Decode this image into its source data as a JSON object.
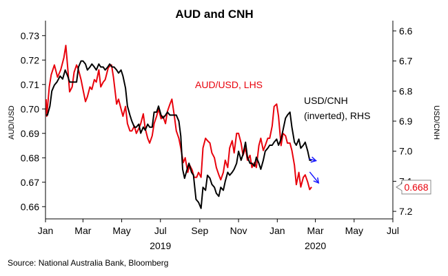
{
  "chart_data": {
    "type": "line",
    "title": "AUD and CNH",
    "left_axis": {
      "label": "AUD/USD",
      "range": [
        0.655,
        0.735
      ],
      "ticks": [
        "0.66",
        "0.67",
        "0.68",
        "0.69",
        "0.70",
        "0.71",
        "0.72",
        "0.73"
      ],
      "tick_values": [
        0.66,
        0.67,
        0.68,
        0.69,
        0.7,
        0.71,
        0.72,
        0.73
      ]
    },
    "right_axis": {
      "label": "USD/CNH",
      "inverted": true,
      "range": [
        6.575,
        7.225
      ],
      "ticks": [
        "6.6",
        "6.7",
        "6.8",
        "6.9",
        "7.0",
        "7.1",
        "7.2"
      ],
      "tick_values": [
        6.6,
        6.7,
        6.8,
        6.9,
        7.0,
        7.1,
        7.2
      ]
    },
    "x_axis": {
      "start": "2019-01-01",
      "end": "2020-07-01",
      "tick_labels": [
        "Jan",
        "Mar",
        "May",
        "Jul",
        "Sep",
        "Nov",
        "Jan",
        "Mar",
        "May",
        "Jul"
      ],
      "tick_dates": [
        "2019-01-01",
        "2019-03-01",
        "2019-05-01",
        "2019-07-01",
        "2019-09-01",
        "2019-11-01",
        "2020-01-01",
        "2020-03-01",
        "2020-05-01",
        "2020-07-01"
      ],
      "year_labels": [
        "2019",
        "2020"
      ]
    },
    "grid": false,
    "series": [
      {
        "name": "AUD/USD, LHS",
        "axis": "left",
        "color": "#e8000b",
        "points": [
          [
            "2019-01-02",
            0.704
          ],
          [
            "2019-01-03",
            0.697
          ],
          [
            "2019-01-07",
            0.709
          ],
          [
            "2019-01-10",
            0.714
          ],
          [
            "2019-01-15",
            0.718
          ],
          [
            "2019-01-20",
            0.713
          ],
          [
            "2019-01-25",
            0.716
          ],
          [
            "2019-01-30",
            0.721
          ],
          [
            "2019-02-02",
            0.726
          ],
          [
            "2019-02-05",
            0.717
          ],
          [
            "2019-02-08",
            0.707
          ],
          [
            "2019-02-12",
            0.709
          ],
          [
            "2019-02-15",
            0.715
          ],
          [
            "2019-02-19",
            0.718
          ],
          [
            "2019-02-22",
            0.716
          ],
          [
            "2019-02-26",
            0.712
          ],
          [
            "2019-03-01",
            0.708
          ],
          [
            "2019-03-05",
            0.703
          ],
          [
            "2019-03-08",
            0.705
          ],
          [
            "2019-03-12",
            0.709
          ],
          [
            "2019-03-15",
            0.708
          ],
          [
            "2019-03-19",
            0.712
          ],
          [
            "2019-03-22",
            0.711
          ],
          [
            "2019-03-26",
            0.716
          ],
          [
            "2019-03-29",
            0.709
          ],
          [
            "2019-04-02",
            0.711
          ],
          [
            "2019-04-05",
            0.712
          ],
          [
            "2019-04-10",
            0.717
          ],
          [
            "2019-04-15",
            0.718
          ],
          [
            "2019-04-18",
            0.713
          ],
          [
            "2019-04-23",
            0.702
          ],
          [
            "2019-04-26",
            0.704
          ],
          [
            "2019-04-30",
            0.7
          ],
          [
            "2019-05-03",
            0.697
          ],
          [
            "2019-05-07",
            0.701
          ],
          [
            "2019-05-10",
            0.694
          ],
          [
            "2019-05-14",
            0.691
          ],
          [
            "2019-05-17",
            0.691
          ],
          [
            "2019-05-21",
            0.693
          ],
          [
            "2019-05-24",
            0.69
          ],
          [
            "2019-05-28",
            0.692
          ],
          [
            "2019-05-31",
            0.694
          ],
          [
            "2019-06-04",
            0.698
          ],
          [
            "2019-06-07",
            0.692
          ],
          [
            "2019-06-11",
            0.688
          ],
          [
            "2019-06-14",
            0.686
          ],
          [
            "2019-06-18",
            0.689
          ],
          [
            "2019-06-21",
            0.694
          ],
          [
            "2019-06-25",
            0.697
          ],
          [
            "2019-06-28",
            0.7
          ],
          [
            "2019-07-02",
            0.696
          ],
          [
            "2019-07-05",
            0.697
          ],
          [
            "2019-07-09",
            0.694
          ],
          [
            "2019-07-12",
            0.699
          ],
          [
            "2019-07-16",
            0.702
          ],
          [
            "2019-07-19",
            0.704
          ],
          [
            "2019-07-23",
            0.697
          ],
          [
            "2019-07-26",
            0.691
          ],
          [
            "2019-07-30",
            0.688
          ],
          [
            "2019-08-02",
            0.684
          ],
          [
            "2019-08-06",
            0.678
          ],
          [
            "2019-08-09",
            0.68
          ],
          [
            "2019-08-13",
            0.674
          ],
          [
            "2019-08-16",
            0.677
          ],
          [
            "2019-08-20",
            0.675
          ],
          [
            "2019-08-23",
            0.672
          ],
          [
            "2019-08-27",
            0.672
          ],
          [
            "2019-08-30",
            0.674
          ],
          [
            "2019-09-03",
            0.672
          ],
          [
            "2019-09-06",
            0.684
          ],
          [
            "2019-09-10",
            0.688
          ],
          [
            "2019-09-13",
            0.687
          ],
          [
            "2019-09-17",
            0.686
          ],
          [
            "2019-09-20",
            0.682
          ],
          [
            "2019-09-24",
            0.68
          ],
          [
            "2019-09-27",
            0.676
          ],
          [
            "2019-10-01",
            0.673
          ],
          [
            "2019-10-04",
            0.671
          ],
          [
            "2019-10-08",
            0.674
          ],
          [
            "2019-10-11",
            0.679
          ],
          [
            "2019-10-15",
            0.676
          ],
          [
            "2019-10-18",
            0.684
          ],
          [
            "2019-10-22",
            0.687
          ],
          [
            "2019-10-25",
            0.682
          ],
          [
            "2019-10-29",
            0.69
          ],
          [
            "2019-11-01",
            0.69
          ],
          [
            "2019-11-05",
            0.686
          ],
          [
            "2019-11-08",
            0.681
          ],
          [
            "2019-11-12",
            0.684
          ],
          [
            "2019-11-15",
            0.679
          ],
          [
            "2019-11-19",
            0.681
          ],
          [
            "2019-11-22",
            0.676
          ],
          [
            "2019-11-26",
            0.678
          ],
          [
            "2019-11-29",
            0.676
          ],
          [
            "2019-12-03",
            0.685
          ],
          [
            "2019-12-06",
            0.688
          ],
          [
            "2019-12-10",
            0.683
          ],
          [
            "2019-12-13",
            0.685
          ],
          [
            "2019-12-17",
            0.688
          ],
          [
            "2019-12-20",
            0.688
          ],
          [
            "2019-12-24",
            0.693
          ],
          [
            "2019-12-27",
            0.701
          ],
          [
            "2019-12-31",
            0.702
          ],
          [
            "2020-01-03",
            0.697
          ],
          [
            "2020-01-07",
            0.685
          ],
          [
            "2020-01-10",
            0.69
          ],
          [
            "2020-01-14",
            0.689
          ],
          [
            "2020-01-17",
            0.686
          ],
          [
            "2020-01-21",
            0.686
          ],
          [
            "2020-01-24",
            0.683
          ],
          [
            "2020-01-28",
            0.677
          ],
          [
            "2020-01-31",
            0.669
          ],
          [
            "2020-02-04",
            0.674
          ],
          [
            "2020-02-07",
            0.668
          ],
          [
            "2020-02-11",
            0.672
          ],
          [
            "2020-02-14",
            0.673
          ],
          [
            "2020-02-18",
            0.67
          ],
          [
            "2020-02-21",
            0.667
          ],
          [
            "2020-02-24",
            0.668
          ]
        ],
        "last_value_label": "0.668"
      },
      {
        "name": "USD/CNH (inverted), RHS",
        "axis": "right",
        "color": "#000000",
        "points": [
          [
            "2019-01-02",
            6.88
          ],
          [
            "2019-01-04",
            6.88
          ],
          [
            "2019-01-08",
            6.85
          ],
          [
            "2019-01-11",
            6.8
          ],
          [
            "2019-01-15",
            6.78
          ],
          [
            "2019-01-19",
            6.77
          ],
          [
            "2019-01-24",
            6.75
          ],
          [
            "2019-01-28",
            6.76
          ],
          [
            "2019-02-01",
            6.73
          ],
          [
            "2019-02-05",
            6.75
          ],
          [
            "2019-02-08",
            6.77
          ],
          [
            "2019-02-12",
            6.77
          ],
          [
            "2019-02-15",
            6.77
          ],
          [
            "2019-02-19",
            6.77
          ],
          [
            "2019-02-22",
            6.72
          ],
          [
            "2019-02-26",
            6.7
          ],
          [
            "2019-03-01",
            6.7
          ],
          [
            "2019-03-05",
            6.71
          ],
          [
            "2019-03-08",
            6.73
          ],
          [
            "2019-03-12",
            6.72
          ],
          [
            "2019-03-15",
            6.71
          ],
          [
            "2019-03-19",
            6.72
          ],
          [
            "2019-03-22",
            6.73
          ],
          [
            "2019-03-26",
            6.71
          ],
          [
            "2019-03-29",
            6.72
          ],
          [
            "2019-04-02",
            6.72
          ],
          [
            "2019-04-05",
            6.73
          ],
          [
            "2019-04-09",
            6.72
          ],
          [
            "2019-04-12",
            6.71
          ],
          [
            "2019-04-16",
            6.72
          ],
          [
            "2019-04-19",
            6.72
          ],
          [
            "2019-04-23",
            6.73
          ],
          [
            "2019-04-26",
            6.74
          ],
          [
            "2019-04-30",
            6.73
          ],
          [
            "2019-05-03",
            6.75
          ],
          [
            "2019-05-07",
            6.79
          ],
          [
            "2019-05-10",
            6.85
          ],
          [
            "2019-05-14",
            6.88
          ],
          [
            "2019-05-17",
            6.9
          ],
          [
            "2019-05-21",
            6.92
          ],
          [
            "2019-05-24",
            6.92
          ],
          [
            "2019-05-28",
            6.91
          ],
          [
            "2019-05-31",
            6.94
          ],
          [
            "2019-06-04",
            6.92
          ],
          [
            "2019-06-07",
            6.93
          ],
          [
            "2019-06-11",
            6.91
          ],
          [
            "2019-06-14",
            6.92
          ],
          [
            "2019-06-18",
            6.92
          ],
          [
            "2019-06-21",
            6.87
          ],
          [
            "2019-06-25",
            6.87
          ],
          [
            "2019-06-28",
            6.85
          ],
          [
            "2019-07-02",
            6.88
          ],
          [
            "2019-07-05",
            6.89
          ],
          [
            "2019-07-09",
            6.88
          ],
          [
            "2019-07-12",
            6.87
          ],
          [
            "2019-07-16",
            6.88
          ],
          [
            "2019-07-19",
            6.88
          ],
          [
            "2019-07-23",
            6.88
          ],
          [
            "2019-07-26",
            6.88
          ],
          [
            "2019-07-30",
            6.9
          ],
          [
            "2019-08-02",
            6.95
          ],
          [
            "2019-08-05",
            7.06
          ],
          [
            "2019-08-08",
            7.09
          ],
          [
            "2019-08-12",
            7.06
          ],
          [
            "2019-08-15",
            7.04
          ],
          [
            "2019-08-19",
            7.07
          ],
          [
            "2019-08-22",
            7.08
          ],
          [
            "2019-08-26",
            7.16
          ],
          [
            "2019-08-30",
            7.17
          ],
          [
            "2019-09-03",
            7.19
          ],
          [
            "2019-09-06",
            7.12
          ],
          [
            "2019-09-10",
            7.13
          ],
          [
            "2019-09-13",
            7.08
          ],
          [
            "2019-09-17",
            7.09
          ],
          [
            "2019-09-20",
            7.11
          ],
          [
            "2019-09-24",
            7.12
          ],
          [
            "2019-09-27",
            7.14
          ],
          [
            "2019-10-01",
            7.15
          ],
          [
            "2019-10-04",
            7.12
          ],
          [
            "2019-10-08",
            7.13
          ],
          [
            "2019-10-11",
            7.1
          ],
          [
            "2019-10-15",
            7.07
          ],
          [
            "2019-10-18",
            7.08
          ],
          [
            "2019-10-22",
            7.07
          ],
          [
            "2019-10-25",
            7.06
          ],
          [
            "2019-10-29",
            7.04
          ],
          [
            "2019-11-01",
            7.0
          ],
          [
            "2019-11-05",
            7.03
          ],
          [
            "2019-11-08",
            7.01
          ],
          [
            "2019-11-12",
            6.97
          ],
          [
            "2019-11-15",
            7.02
          ],
          [
            "2019-11-19",
            7.04
          ],
          [
            "2019-11-22",
            7.04
          ],
          [
            "2019-11-26",
            7.05
          ],
          [
            "2019-11-29",
            7.02
          ],
          [
            "2019-12-03",
            7.04
          ],
          [
            "2019-12-06",
            7.06
          ],
          [
            "2019-12-10",
            7.03
          ],
          [
            "2019-12-13",
            7.0
          ],
          [
            "2019-12-17",
            6.99
          ],
          [
            "2019-12-20",
            6.98
          ],
          [
            "2019-12-24",
            6.98
          ],
          [
            "2019-12-27",
            6.97
          ],
          [
            "2019-12-31",
            6.96
          ],
          [
            "2020-01-03",
            6.98
          ],
          [
            "2020-01-07",
            6.96
          ],
          [
            "2020-01-10",
            6.93
          ],
          [
            "2020-01-14",
            6.89
          ],
          [
            "2020-01-17",
            6.88
          ],
          [
            "2020-01-21",
            6.87
          ],
          [
            "2020-01-24",
            6.92
          ],
          [
            "2020-01-28",
            6.97
          ],
          [
            "2020-01-31",
            6.98
          ],
          [
            "2020-02-04",
            6.96
          ],
          [
            "2020-02-07",
            6.99
          ],
          [
            "2020-02-11",
            6.98
          ],
          [
            "2020-02-14",
            6.97
          ],
          [
            "2020-02-18",
            7.0
          ],
          [
            "2020-02-21",
            7.03
          ],
          [
            "2020-02-24",
            7.03
          ]
        ]
      }
    ],
    "annotations": {
      "aud_label": "AUD/USD, LHS",
      "cnh_label_line1": "USD/CNH",
      "cnh_label_line2": "(inverted), RHS",
      "arrows": [
        {
          "from": [
            "2020-02-20",
            0.6795
          ],
          "to": [
            "2020-03-02",
            0.6788
          ],
          "color": "#1a1aff"
        },
        {
          "from": [
            "2020-02-21",
            0.6742
          ],
          "to": [
            "2020-03-06",
            0.6697
          ],
          "color": "#1a1aff"
        }
      ]
    }
  },
  "footer": {
    "source": "Source: National Australia Bank, Bloomberg"
  }
}
